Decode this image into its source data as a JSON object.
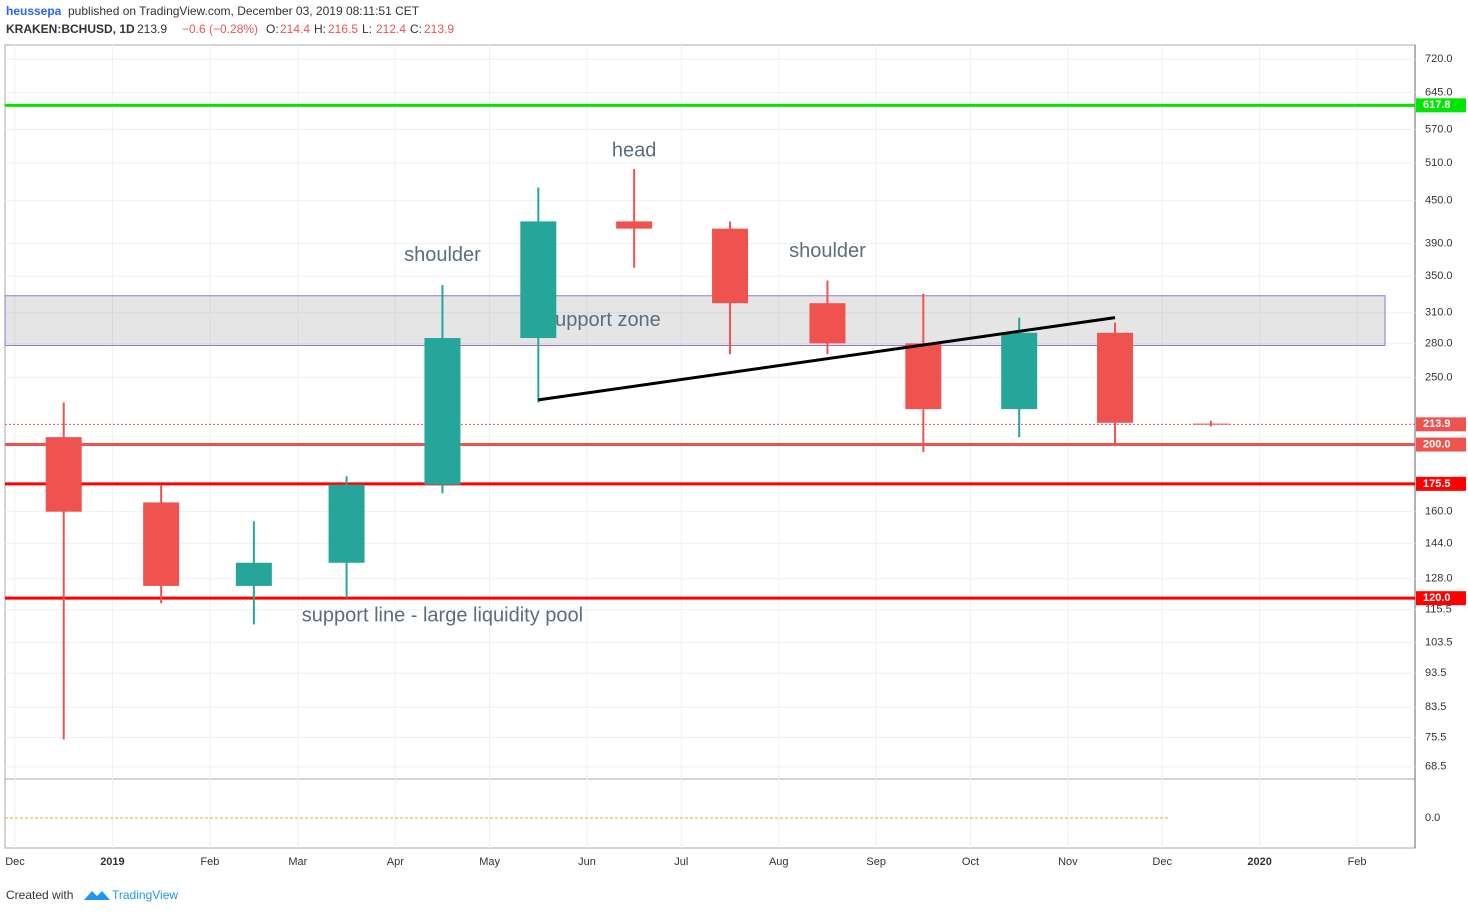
{
  "header": {
    "author": "heussepa",
    "published": "published on TradingView.com, December 03, 2019 08:11:51 CET",
    "symbol": "KRAKEN:BCHUSD, 1D",
    "last": "213.9",
    "change": "−0.6 (−0.28%)",
    "o_label": "O:",
    "o": "214.4",
    "h_label": "H:",
    "h": "216.5",
    "l_label": "L:",
    "l": "212.4",
    "c_label": "C:",
    "c": "213.9"
  },
  "footer": {
    "created": "Created with",
    "brand": "TradingView"
  },
  "chart_data": {
    "type": "candlestick",
    "log_scale": true,
    "grid": true,
    "categories": [
      "Dec",
      "2019",
      "Feb",
      "Mar",
      "Apr",
      "May",
      "Jun",
      "Jul",
      "Aug",
      "Sep",
      "Oct",
      "Nov",
      "Dec",
      "2020",
      "Feb"
    ],
    "open": [
      205,
      165,
      125,
      135,
      175,
      285,
      420,
      410,
      320,
      280,
      225,
      290,
      214.4,
      null,
      null
    ],
    "high": [
      230,
      175,
      155,
      180,
      340,
      470,
      500,
      420,
      345,
      330,
      305,
      300,
      216.5,
      null,
      null
    ],
    "low": [
      75,
      118,
      110,
      120,
      170,
      230,
      360,
      270,
      270,
      195,
      205,
      200,
      212.4,
      null,
      null
    ],
    "close": [
      160,
      125,
      135,
      175,
      285,
      420,
      410,
      320,
      280,
      225,
      290,
      215,
      213.9,
      null,
      null
    ],
    "up_color": "#26a69a",
    "down_color": "#ef5350",
    "ylim": [
      66,
      755
    ],
    "yticks": [
      {
        "value": 720,
        "label": "720.0"
      },
      {
        "value": 645,
        "label": "645.0"
      },
      {
        "value": 570,
        "label": "570.0"
      },
      {
        "value": 510,
        "label": "510.0"
      },
      {
        "value": 450,
        "label": "450.0"
      },
      {
        "value": 390,
        "label": "390.0"
      },
      {
        "value": 350,
        "label": "350.0"
      },
      {
        "value": 310,
        "label": "310.0"
      },
      {
        "value": 280,
        "label": "280.0"
      },
      {
        "value": 250,
        "label": "250.0"
      },
      {
        "value": 160,
        "label": "160.0"
      },
      {
        "value": 144,
        "label": "144.0"
      },
      {
        "value": 128,
        "label": "128.0"
      },
      {
        "value": 115.5,
        "label": "115.5"
      },
      {
        "value": 103.5,
        "label": "103.5"
      },
      {
        "value": 93.5,
        "label": "93.5"
      },
      {
        "value": 83.5,
        "label": "83.5"
      },
      {
        "value": 75.5,
        "label": "75.5"
      },
      {
        "value": 68.5,
        "label": "68.5"
      }
    ],
    "levels": [
      {
        "value": 617.8,
        "label": "617.8",
        "color": "#00e600"
      },
      {
        "value": 213.9,
        "label": "213.9",
        "color": "#ef5350"
      },
      {
        "value": 200,
        "label": "200.0",
        "color": "#ef5350"
      },
      {
        "value": 175.5,
        "label": "175.5",
        "color": "#ff0000"
      },
      {
        "value": 120,
        "label": "120.0",
        "color": "#ff0000"
      }
    ],
    "zone": {
      "label": "support zone",
      "low": 278,
      "high": 328
    },
    "trendline": {
      "from": 5,
      "to": 11,
      "y": [
        232,
        305
      ]
    },
    "annotations": [
      {
        "text": "head",
        "at": 6,
        "y": 530
      },
      {
        "text": "shoulder",
        "at": 4,
        "y": 375
      },
      {
        "text": "shoulder",
        "at": 8,
        "y": 380
      },
      {
        "text": "support line - large liquidity pool",
        "at": 4,
        "y": 113
      }
    ],
    "oscillator_tick": {
      "value": 0,
      "label": "0.0"
    }
  }
}
